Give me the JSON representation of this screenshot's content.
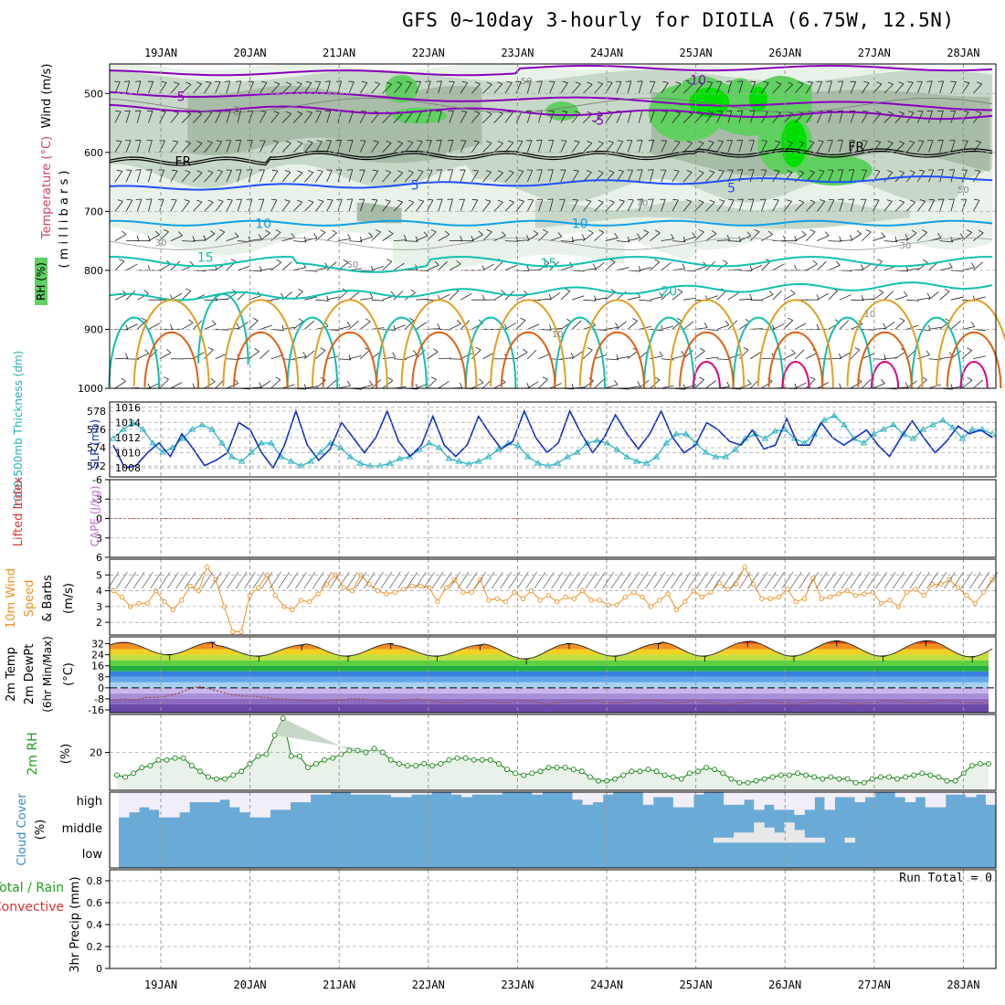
{
  "title": "GFS 0~10day 3-hourly for DIOILA (6.75W, 12.5N)",
  "dates": [
    "19JAN",
    "20JAN",
    "21JAN",
    "22JAN",
    "23JAN",
    "24JAN",
    "25JAN",
    "26JAN",
    "27JAN",
    "28JAN"
  ],
  "colors": {
    "rh_light": "#e8f2e8",
    "rh_mid": "#c8d8c8",
    "rh_dark": "#a8bca8",
    "rh_green": "#60d060",
    "rh_bright": "#00e000",
    "purple": "#8800bb",
    "blue": "#2050ff",
    "cyan": "#10a0e8",
    "teal": "#10c0b0",
    "orange": "#e0a020",
    "dark_orange": "#e06010",
    "slp": "#1030c0",
    "thick": "#20b0c0",
    "wind": "#f09020",
    "cloud_blue": "#6aaad6",
    "cloud_white": "#f2eef8"
  },
  "chart_data": [
    {
      "type": "contour",
      "panel": "upper_air",
      "ylabel_wind": "Wind (m/s)",
      "ylabel_temp": "Temperature (°C)",
      "ylabel_rh": "RH (%)",
      "ylabel_units": "( m i l l i b a r s )",
      "y_ticks": [
        "500",
        "600",
        "700",
        "800",
        "900",
        "1000"
      ],
      "temp_labels": [
        {
          "text": "-5",
          "t": 0.2,
          "p": 505
        },
        {
          "text": "0",
          "t": 0.85,
          "p": 530
        },
        {
          "text": "-10",
          "t": 6.0,
          "p": 477
        },
        {
          "text": "-5",
          "t": 4.9,
          "p": 545
        },
        {
          "text": "FR",
          "t": 0.25,
          "p": 615
        },
        {
          "text": "FR",
          "t": 7.8,
          "p": 590
        },
        {
          "text": "5",
          "t": 2.85,
          "p": 655
        },
        {
          "text": "5",
          "t": 6.4,
          "p": 660
        },
        {
          "text": "10",
          "t": 1.15,
          "p": 720
        },
        {
          "text": "10",
          "t": 4.7,
          "p": 720
        },
        {
          "text": "15",
          "t": 0.5,
          "p": 778
        },
        {
          "text": "15",
          "t": 4.35,
          "p": 788
        },
        {
          "text": "20",
          "t": 5.7,
          "p": 835
        }
      ],
      "rh_labels": [
        {
          "text": "50",
          "t": 4.1,
          "p": 478
        },
        {
          "text": "50",
          "t": 9.0,
          "p": 662
        },
        {
          "text": "70",
          "t": 5.4,
          "p": 685
        },
        {
          "text": "30",
          "t": 8.35,
          "p": 757
        },
        {
          "text": "30",
          "t": 0.0,
          "p": 752
        },
        {
          "text": "50",
          "t": 2.15,
          "p": 789
        },
        {
          "text": "10",
          "t": 7.95,
          "p": 873
        },
        {
          "text": "10",
          "t": 4.45,
          "p": 907
        }
      ]
    },
    {
      "type": "line",
      "panel": "slp_thickness",
      "ylabel": "1000-500mb Thickness (dm)",
      "ylabel2": "SLP (mb)",
      "left_ticks": [
        "578",
        "576",
        "574",
        "572"
      ],
      "right_ticks": [
        "1016",
        "1014",
        "1012",
        "1010",
        "1008"
      ],
      "series": [
        {
          "name": "SLP (mb)",
          "values": [
            1011.0,
            1008.0,
            1008.3,
            1010.0,
            1011.3,
            1009.5,
            1012.5,
            1010.5,
            1008.3,
            1009.0,
            1010.0,
            1014.0,
            1013.0,
            1010.0,
            1008.0,
            1011.0,
            1015.5,
            1011.0,
            1009.0,
            1010.5,
            1014.0,
            1012.0,
            1010.0,
            1012.0,
            1015.5,
            1011.5,
            1009.5,
            1011.0,
            1014.8,
            1011.0,
            1009.5,
            1011.0,
            1014.8,
            1012.5,
            1010.5,
            1011.5,
            1015.5,
            1012.0,
            1010.0,
            1011.3,
            1015.5,
            1012.5,
            1010.0,
            1012.0,
            1015.0,
            1012.5,
            1010.5,
            1012.5,
            1015.5,
            1012.0,
            1010.0,
            1011.0,
            1014.0,
            1013.0,
            1011.5,
            1011.0,
            1013.0,
            1010.5,
            1011.0,
            1014.5,
            1011.0,
            1011.0,
            1014.0,
            1012.0,
            1011.0,
            1012.0,
            1013.0,
            1011.0,
            1009.5,
            1012.0,
            1014.2,
            1012.0,
            1010.0,
            1011.5,
            1013.5,
            1012.5,
            1013.0,
            1012.0
          ]
        },
        {
          "name": "Thickness (dm)",
          "values": [
            575.0,
            576.0,
            576.7,
            576.0,
            574.5,
            573.5,
            574.0,
            575.0,
            576.0,
            576.5,
            576.0,
            574.5,
            573.0,
            572.5,
            573.5,
            574.5,
            574.5,
            573.0,
            572.5,
            572.0,
            572.5,
            573.5,
            574.5,
            574.0,
            573.0,
            572.3,
            572.0,
            572.0,
            572.3,
            572.8,
            573.0,
            573.8,
            574.5,
            574.0,
            572.8,
            572.5,
            572.2,
            572.5,
            573.0,
            573.8,
            574.5,
            574.2,
            573.0,
            572.3,
            572.0,
            572.3,
            573.0,
            573.5,
            574.5,
            574.8,
            574.5,
            573.8,
            573.0,
            572.5,
            572.3,
            573.0,
            574.5,
            575.5,
            575.5,
            574.5,
            573.5,
            573.0,
            573.0,
            573.8,
            575.0,
            575.5,
            575.0,
            575.8,
            576.0,
            575.0,
            574.5,
            575.5,
            577.0,
            577.5,
            576.5,
            575.0,
            574.5,
            575.5,
            576.0,
            576.5,
            575.5,
            575.0,
            576.0,
            576.5,
            577.0,
            576.2,
            575.0,
            576.0,
            576.0,
            575.5
          ]
        }
      ],
      "x_hours_step": 3
    },
    {
      "type": "line",
      "panel": "cape_li",
      "ylabel1": "Lifted Index",
      "ylabel2": "CAPE (J/kg)",
      "y_ticks": [
        "-6",
        "-3",
        "0",
        "3",
        "6"
      ],
      "ylim": [
        -6,
        6
      ],
      "series": []
    },
    {
      "type": "line",
      "panel": "wind10m",
      "ylabel1": "10m Wind",
      "ylabel2": "Speed",
      "ylabel3": "& Barbs",
      "ylabel_units": "(m/s)",
      "y_ticks": [
        "5",
        "4",
        "3",
        "2"
      ],
      "ylim": [
        1.2,
        6.0
      ],
      "values": [
        4.0,
        3.6,
        3.0,
        3.2,
        3.2,
        4.0,
        3.3,
        2.8,
        3.4,
        4.3,
        4.0,
        5.5,
        4.7,
        3.0,
        1.4,
        1.4,
        3.7,
        4.2,
        5.0,
        3.7,
        3.0,
        2.8,
        3.4,
        3.3,
        3.8,
        4.4,
        5.0,
        4.2,
        4.0,
        5.0,
        4.4,
        4.0,
        3.8,
        3.9,
        4.1,
        4.3,
        4.3,
        4.2,
        3.3,
        4.2,
        4.7,
        3.9,
        3.9,
        4.7,
        3.4,
        3.5,
        3.3,
        3.9,
        3.5,
        4.0,
        3.4,
        3.7,
        3.3,
        3.6,
        3.5,
        4.0,
        3.4,
        3.4,
        3.1,
        3.1,
        3.6,
        3.9,
        3.6,
        3.0,
        3.4,
        3.8,
        2.8,
        3.3,
        4.0,
        3.6,
        3.9,
        4.5,
        4.1,
        4.4,
        5.5,
        4.4,
        3.5,
        3.5,
        3.6,
        4.1,
        3.3,
        3.5,
        4.8,
        3.5,
        3.6,
        3.8,
        4.0,
        3.7,
        3.8,
        3.9,
        3.2,
        3.4,
        3.0,
        3.9,
        4.1,
        3.7,
        4.4,
        4.4,
        4.7,
        4.2,
        3.7,
        3.2,
        3.9,
        4.7
      ]
    },
    {
      "type": "area",
      "panel": "temp2m",
      "ylabel1": "2m Temp",
      "ylabel2": "2m DewPt",
      "ylabel3": "(6hr Min/Max)",
      "ylabel_units": "(°C)",
      "y_ticks": [
        "32",
        "24",
        "16",
        "8",
        "0",
        "-8",
        "-16"
      ],
      "ylim": [
        -18,
        37
      ],
      "temp_maxes": [
        33.0,
        31.0,
        32.0,
        31.0,
        32.0,
        32.0,
        33.5,
        34.0,
        34.0,
        34.5
      ],
      "temp_mins": [
        24.0,
        23.0,
        23.0,
        23.0,
        21.0,
        23.0,
        23.0,
        23.0,
        23.0,
        22.5
      ],
      "dewpt": [
        -9,
        -8,
        -9,
        -7,
        -7,
        -6,
        -4,
        -1,
        1,
        -1,
        -3,
        -5,
        -6,
        -6,
        -7,
        -8,
        -8,
        -9,
        -9,
        -10,
        -9,
        -9,
        -8,
        -8,
        -9,
        -10,
        -10,
        -9,
        -8,
        -9,
        -10,
        -11,
        -11,
        -9,
        -9,
        -10,
        -11,
        -10,
        -9,
        -10,
        -12,
        -11,
        -10,
        -10,
        -9,
        -10,
        -11,
        -11,
        -10,
        -9,
        -9,
        -10,
        -11,
        -10,
        -9,
        -10,
        -12,
        -12,
        -11,
        -10,
        -9,
        -10,
        -11,
        -12,
        -11,
        -10,
        -9,
        -10,
        -11,
        -12,
        -11,
        -10,
        -9,
        -10,
        -11,
        -11,
        -10,
        -9,
        -10,
        -11,
        -11,
        -12
      ]
    },
    {
      "type": "area",
      "panel": "rh2m",
      "ylabel": "2m RH",
      "ylabel_units": "(%)",
      "y_ticks": [
        "20"
      ],
      "ylim": [
        0,
        40
      ],
      "values": [
        8,
        7,
        9,
        12,
        13,
        16,
        16,
        17,
        17,
        13,
        10,
        7,
        6,
        6,
        8,
        10,
        14,
        18,
        19,
        29,
        38,
        18,
        18,
        12,
        14,
        16,
        17,
        19,
        21,
        21,
        20,
        22,
        20,
        16,
        14,
        13,
        13,
        14,
        13,
        14,
        16,
        17,
        17,
        16,
        16,
        16,
        14,
        11,
        9,
        8,
        9,
        10,
        12,
        12,
        12,
        11,
        10,
        7,
        5,
        5,
        6,
        8,
        10,
        10,
        11,
        10,
        8,
        7,
        6,
        9,
        10,
        12,
        11,
        9,
        6,
        4,
        4,
        5,
        6,
        7,
        8,
        8,
        9,
        8,
        7,
        6,
        7,
        6,
        6,
        4,
        4,
        6,
        7,
        7,
        6,
        7,
        8,
        9,
        8,
        7,
        5,
        5,
        9,
        13,
        14,
        14
      ]
    },
    {
      "type": "area",
      "panel": "cloud",
      "ylabel1": "Cloud Cover",
      "ylabel_units": "(%)",
      "levels": [
        "high",
        "middle",
        "low"
      ],
      "high": [
        0.0,
        0.2,
        0.4,
        0.3,
        0.0,
        0.0,
        0.2,
        0.6,
        0.6,
        0.6,
        0.7,
        0.4,
        0.2,
        0.0,
        0.0,
        0.3,
        0.3,
        0.6,
        0.6,
        0.9,
        0.9,
        1.0,
        1.0,
        0.9,
        0.9,
        0.9,
        0.9,
        0.8,
        0.8,
        0.9,
        0.9,
        1.0,
        1.0,
        0.9,
        0.8,
        0.9,
        0.9,
        0.9,
        1.0,
        1.0,
        1.0,
        0.9,
        1.0,
        1.0,
        1.0,
        0.7,
        0.5,
        0.6,
        0.9,
        1.0,
        1.0,
        1.0,
        0.5,
        0.8,
        0.8,
        0.4,
        0.4,
        0.9,
        1.0,
        1.0,
        0.5,
        0.5,
        0.7,
        0.3,
        0.5,
        0.3,
        0.3,
        0.1,
        0.3,
        0.8,
        0.3,
        0.8,
        0.8,
        0.6,
        0.8,
        1.0,
        1.0,
        0.8,
        0.6,
        0.8,
        0.4,
        0.4,
        0.9,
        0.9,
        0.8,
        0.9,
        0.5
      ],
      "middle": [
        0.0,
        0.0,
        0.0,
        0.0,
        0.0,
        0.0,
        0.0,
        0.0,
        0.0,
        0.0,
        0.0,
        0.0,
        0.0,
        0.0,
        0.0,
        0.0,
        0.0,
        0.0,
        0.0,
        0.0,
        0.0,
        0.0,
        0.0,
        0.0,
        0.0,
        0.0,
        0.0,
        0.0,
        0.0,
        0.0,
        0.0,
        0.0,
        0.0,
        0.0,
        0.0,
        0.0,
        0.0,
        0.0,
        0.0,
        0.0,
        0.0,
        0.0,
        0.0,
        0.0,
        0.0,
        0.0,
        0.0,
        0.0,
        0.0,
        0.0,
        0.0,
        0.0,
        0.0,
        0.0,
        0.0,
        0.0,
        0.0,
        0.0,
        0.0,
        0.2,
        0.2,
        0.4,
        0.4,
        0.8,
        0.6,
        0.4,
        0.8,
        0.5,
        0.2,
        0.2,
        0.0,
        0.0,
        0.2,
        0.0,
        0.0,
        0.0,
        0.0,
        0.0,
        0.0,
        0.0,
        0.0,
        0.0,
        0.0,
        0.0,
        0.0,
        0.0,
        0.0
      ],
      "low": []
    },
    {
      "type": "bar",
      "panel": "precip",
      "ylabel1": "Total / Rain",
      "ylabel2": "Convective",
      "ylabel_units": "3hr Precip (mm)",
      "y_ticks": [
        "0.8",
        "0.6",
        "0.4",
        "0.2",
        "0"
      ],
      "ylim": [
        0,
        0.9
      ],
      "run_total_label": "Run Total = 0",
      "values": []
    }
  ]
}
